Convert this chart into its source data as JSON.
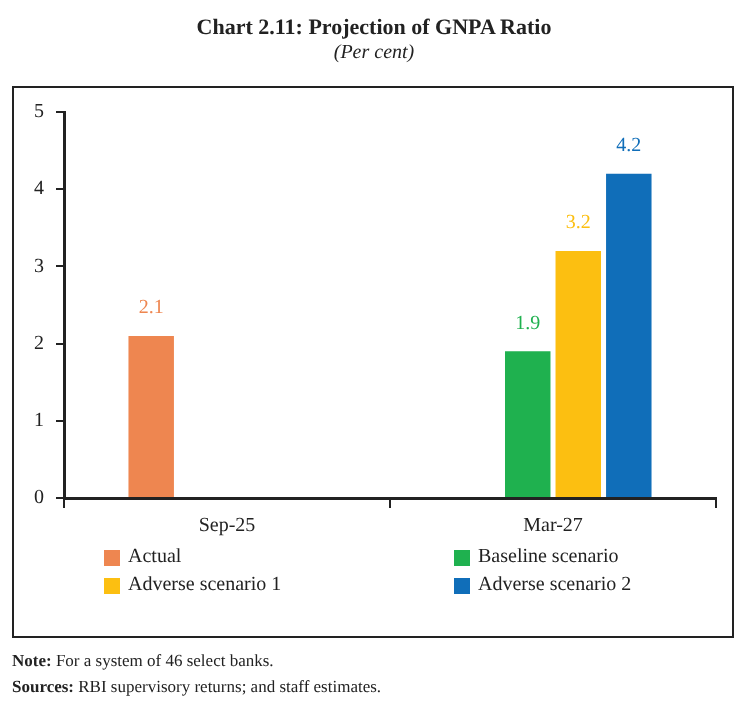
{
  "chart_data": {
    "type": "bar",
    "title": "Chart 2.11: Projection of GNPA Ratio",
    "subtitle": "(Per cent)",
    "categories": [
      "Sep-25",
      "Mar-27"
    ],
    "series": [
      {
        "name": "Actual",
        "color": "#ee8650",
        "values": [
          2.1,
          null
        ]
      },
      {
        "name": "Baseline scenario",
        "color": "#1fb14f",
        "values": [
          null,
          1.9
        ]
      },
      {
        "name": "Adverse scenario 1",
        "color": "#fcbf11",
        "values": [
          null,
          3.2
        ]
      },
      {
        "name": "Adverse scenario 2",
        "color": "#106eb9",
        "values": [
          null,
          4.2
        ]
      }
    ],
    "ylim": [
      0,
      5
    ],
    "yticks": [
      0,
      1,
      2,
      3,
      4,
      5
    ],
    "grid": false,
    "legend": "bottom",
    "data_labels": true,
    "annotations": [
      "Note: For a system of 46 select banks.",
      "Sources: RBI supervisory returns; and staff estimates."
    ]
  }
}
